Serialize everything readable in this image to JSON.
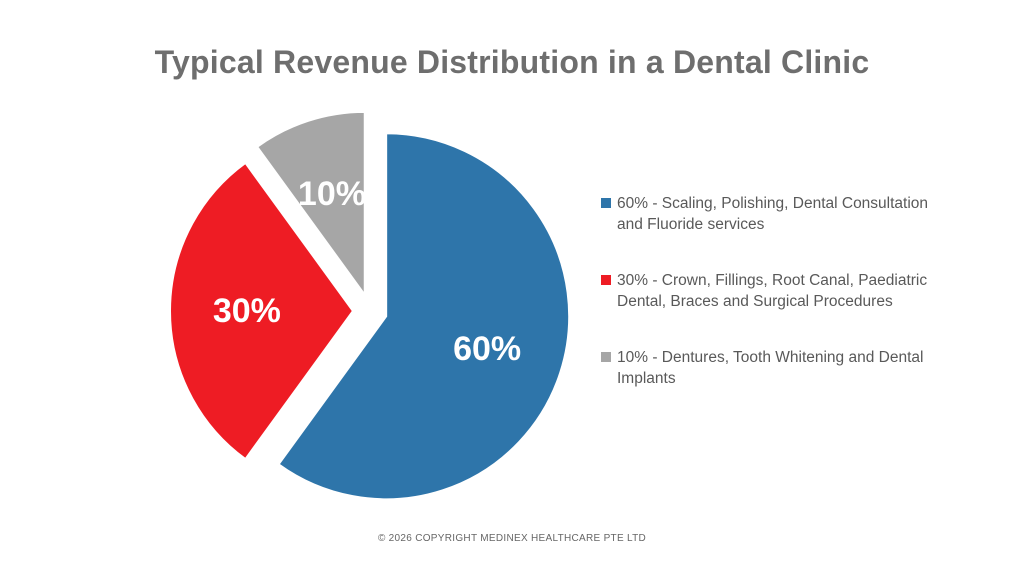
{
  "chart_data": {
    "type": "pie",
    "title": "Typical Revenue Distribution in a Dental Clinic",
    "slices": [
      {
        "value": 60,
        "label": "60%",
        "color": "#2e75aa",
        "legend": "60% - Scaling, Polishing, Dental Consultation and Fluoride services"
      },
      {
        "value": 30,
        "label": "30%",
        "color": "#ee1c24",
        "legend": "30% - Crown, Fillings, Root Canal, Paediatric Dental, Braces and Surgical Procedures"
      },
      {
        "value": 10,
        "label": "10%",
        "color": "#a6a6a6",
        "legend": "10% - Dentures, Tooth Whitening and Dental Implants"
      }
    ],
    "exploded": true,
    "legend_position": "right"
  },
  "footer": "© 2026 COPYRIGHT MEDINEX HEALTHCARE PTE LTD"
}
